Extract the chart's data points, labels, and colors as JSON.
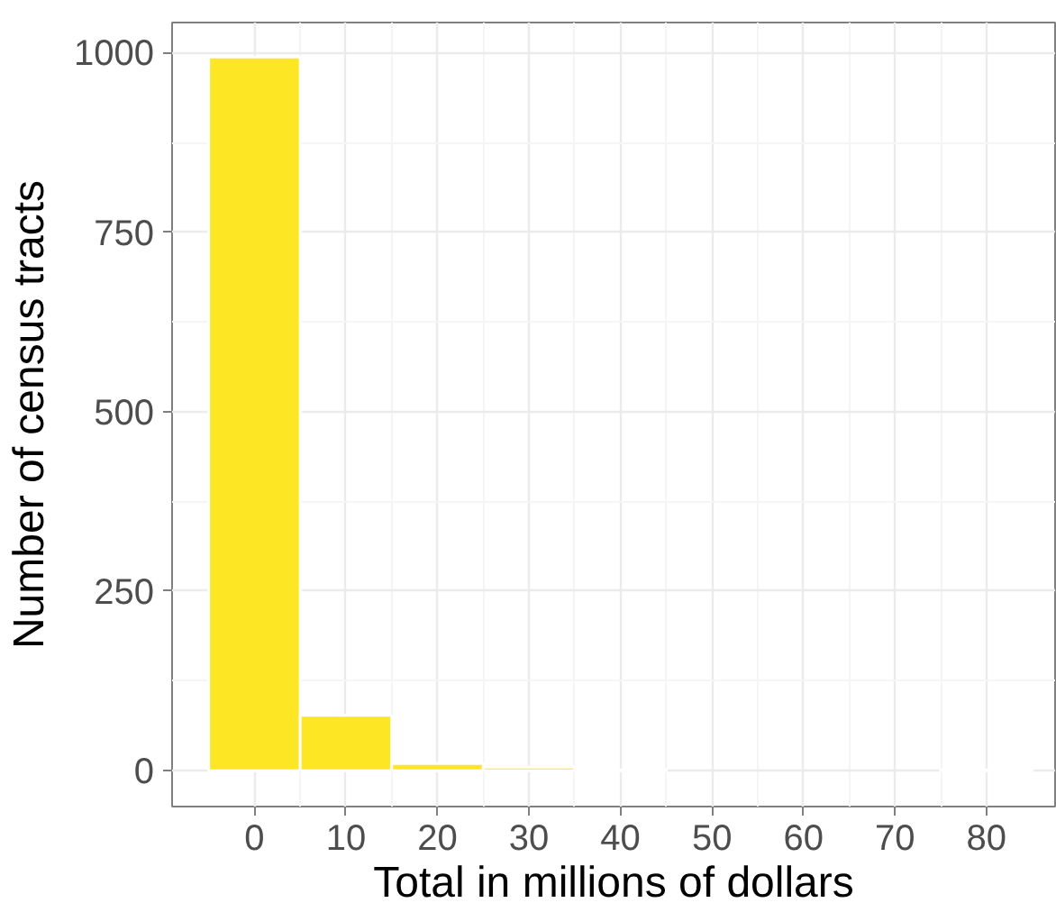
{
  "chart_data": {
    "type": "histogram",
    "xlabel": "Total in millions of dollars",
    "ylabel": "Number of census tracts",
    "bins": [
      -5,
      5,
      15,
      25,
      35,
      45,
      55,
      65,
      75,
      85
    ],
    "values": [
      994,
      77,
      10,
      5,
      1,
      0,
      0,
      0,
      1
    ],
    "color": "#fde725",
    "xlim": [
      -9,
      87.5
    ],
    "ylim": [
      -50,
      1042
    ],
    "xticks": [
      0,
      10,
      20,
      30,
      40,
      50,
      60,
      70,
      80
    ],
    "yticks": [
      0,
      250,
      500,
      750,
      1000
    ],
    "grid": true
  }
}
